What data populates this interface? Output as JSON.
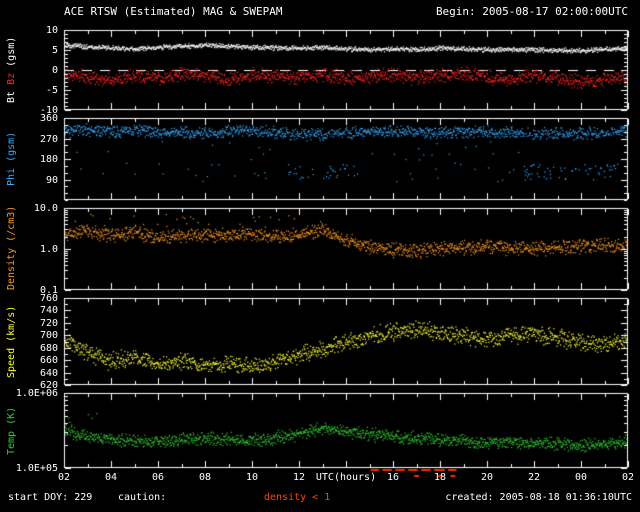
{
  "header": {
    "title": "ACE RTSW (Estimated) MAG & SWEPAM",
    "begin": "Begin: 2005-08-17 02:00:00UTC"
  },
  "footer": {
    "start_doy": "start DOY: 229",
    "caution_label": "caution:",
    "caution_item": "density < 1",
    "created": "created: 2005-08-18 01:36:10UTC"
  },
  "x_axis": {
    "title": "UTC(hours)",
    "title_hour": 14,
    "start_hour": 2,
    "end_hour": 26,
    "major_step": 2,
    "tick_labels": [
      {
        "h": 2,
        "label": "02"
      },
      {
        "h": 4,
        "label": "04"
      },
      {
        "h": 6,
        "label": "06"
      },
      {
        "h": 8,
        "label": "08"
      },
      {
        "h": 10,
        "label": "10"
      },
      {
        "h": 12,
        "label": "12"
      },
      {
        "h": 16,
        "label": "16"
      },
      {
        "h": 18,
        "label": "18"
      },
      {
        "h": 20,
        "label": "20"
      },
      {
        "h": 22,
        "label": "22"
      },
      {
        "h": 24,
        "label": "00"
      },
      {
        "h": 26,
        "label": "02"
      }
    ]
  },
  "caution_marks": {
    "color": "#ff2a00",
    "intervals": [
      [
        15.05,
        15.4
      ],
      [
        15.55,
        15.95
      ],
      [
        16.1,
        16.5
      ],
      [
        16.65,
        17.05
      ],
      [
        17.2,
        17.6
      ],
      [
        17.75,
        18.2
      ],
      [
        18.35,
        18.7
      ]
    ],
    "intervals_secondary": [
      [
        16.9,
        17.1
      ],
      [
        17.9,
        18.1
      ],
      [
        18.45,
        18.65
      ]
    ]
  },
  "chart_data": [
    {
      "name": "mag",
      "type": "scatter",
      "scale": "linear",
      "ylim": [
        -10,
        10
      ],
      "minor_step": 1,
      "zero_dash": true,
      "yticks": [
        {
          "v": 10,
          "label": "10"
        },
        {
          "v": 5,
          "label": "5"
        },
        {
          "v": 0,
          "label": "0"
        },
        {
          "v": -5,
          "label": "-5"
        },
        {
          "v": -10,
          "label": "-10"
        }
      ],
      "ylabel_parts": [
        {
          "text": "Bt",
          "color": "#ffffff"
        },
        {
          "text": "Bz",
          "color": "#ff2222"
        },
        {
          "text": "(gsm)",
          "color": "#ffffff"
        }
      ],
      "series": [
        {
          "name": "Bt",
          "color": "#ffffff",
          "noise": 0.7,
          "anchors": [
            [
              2,
              6.2
            ],
            [
              3,
              5.8
            ],
            [
              4,
              5.5
            ],
            [
              5,
              5.2
            ],
            [
              6,
              5.6
            ],
            [
              7,
              6.0
            ],
            [
              8,
              6.1
            ],
            [
              9,
              5.9
            ],
            [
              10,
              5.6
            ],
            [
              11,
              5.5
            ],
            [
              12,
              5.4
            ],
            [
              13,
              5.6
            ],
            [
              14,
              5.2
            ],
            [
              15,
              5.0
            ],
            [
              16,
              5.3
            ],
            [
              17,
              5.1
            ],
            [
              18,
              5.4
            ],
            [
              19,
              5.2
            ],
            [
              20,
              5.0
            ],
            [
              21,
              5.1
            ],
            [
              22,
              5.0
            ],
            [
              23,
              4.9
            ],
            [
              24,
              4.8
            ],
            [
              25,
              5.2
            ],
            [
              26,
              5.5
            ]
          ]
        },
        {
          "name": "Bz",
          "color": "#ff2222",
          "noise": 2.0,
          "anchors": [
            [
              2,
              -0.8
            ],
            [
              3,
              -1.8
            ],
            [
              4,
              -2.6
            ],
            [
              5,
              -1.4
            ],
            [
              6,
              -2.0
            ],
            [
              7,
              -1.0
            ],
            [
              8,
              -1.6
            ],
            [
              9,
              -2.4
            ],
            [
              10,
              -1.2
            ],
            [
              11,
              -1.6
            ],
            [
              12,
              -2.0
            ],
            [
              13,
              -1.2
            ],
            [
              14,
              -2.0
            ],
            [
              15,
              -1.6
            ],
            [
              16,
              -1.0
            ],
            [
              17,
              -2.0
            ],
            [
              18,
              -1.4
            ],
            [
              19,
              -1.0
            ],
            [
              20,
              -1.8
            ],
            [
              21,
              -2.4
            ],
            [
              22,
              -1.6
            ],
            [
              23,
              -2.0
            ],
            [
              24,
              -3.0
            ],
            [
              25,
              -2.4
            ],
            [
              26,
              -1.8
            ]
          ]
        }
      ]
    },
    {
      "name": "phi",
      "type": "scatter",
      "scale": "linear",
      "ylim": [
        0,
        360
      ],
      "minor_step": 30,
      "yticks": [
        {
          "v": 360,
          "label": "360"
        },
        {
          "v": 270,
          "label": "270"
        },
        {
          "v": 180,
          "label": "180"
        },
        {
          "v": 90,
          "label": "90"
        }
      ],
      "ylabel_parts": [
        {
          "text": "Phi",
          "color": "#33aaff"
        },
        {
          "text": "(gsm)",
          "color": "#33aaff"
        }
      ],
      "series": [
        {
          "name": "Phi",
          "color": "#33aaff",
          "noise": 30,
          "outliers": {
            "prob": 0.05,
            "range": [
              80,
              260
            ],
            "zones": [
              {
                "from": 11.5,
                "to": 14.5,
                "prob": 0.2,
                "range": [
                  85,
                  155
                ]
              },
              {
                "from": 21.5,
                "to": 25.5,
                "prob": 0.2,
                "range": [
                  85,
                  155
                ]
              }
            ]
          },
          "anchors": [
            [
              2,
              300
            ],
            [
              3,
              308
            ],
            [
              4,
              298
            ],
            [
              5,
              305
            ],
            [
              6,
              295
            ],
            [
              7,
              300
            ],
            [
              8,
              290
            ],
            [
              9,
              300
            ],
            [
              10,
              305
            ],
            [
              11,
              295
            ],
            [
              12,
              290
            ],
            [
              13,
              285
            ],
            [
              14,
              295
            ],
            [
              15,
              300
            ],
            [
              16,
              305
            ],
            [
              17,
              300
            ],
            [
              18,
              295
            ],
            [
              19,
              300
            ],
            [
              20,
              298
            ],
            [
              21,
              295
            ],
            [
              22,
              290
            ],
            [
              23,
              295
            ],
            [
              24,
              290
            ],
            [
              25,
              295
            ],
            [
              26,
              300
            ]
          ]
        }
      ]
    },
    {
      "name": "density",
      "type": "scatter",
      "scale": "log",
      "ylim": [
        0.1,
        10
      ],
      "yticks": [
        {
          "v": 10,
          "label": "10.0"
        },
        {
          "v": 1,
          "label": "1.0"
        },
        {
          "v": 0.1,
          "label": "0.1"
        }
      ],
      "ylabel_parts": [
        {
          "text": "Density",
          "color": "#ff9922"
        },
        {
          "text": "(/cm3)",
          "color": "#ff9922"
        }
      ],
      "series": [
        {
          "name": "Density",
          "color": "#ff9922",
          "lognoise": 0.2,
          "outliers": {
            "prob": 0,
            "range": [
              3,
              7
            ],
            "zones": [
              {
                "from": 2,
                "to": 13.5,
                "prob": 0.04,
                "range": [
                  3,
                  7
                ]
              }
            ]
          },
          "anchors": [
            [
              2,
              2.2
            ],
            [
              3,
              2.8
            ],
            [
              4,
              2.2
            ],
            [
              5,
              2.5
            ],
            [
              6,
              1.8
            ],
            [
              7,
              2.0
            ],
            [
              8,
              2.2
            ],
            [
              9,
              2.0
            ],
            [
              10,
              2.4
            ],
            [
              11,
              2.0
            ],
            [
              12,
              2.2
            ],
            [
              13,
              2.9
            ],
            [
              14,
              1.6
            ],
            [
              15,
              1.1
            ],
            [
              16,
              0.95
            ],
            [
              17,
              0.9
            ],
            [
              18,
              1.0
            ],
            [
              19,
              1.05
            ],
            [
              20,
              1.1
            ],
            [
              21,
              1.05
            ],
            [
              22,
              1.0
            ],
            [
              23,
              1.1
            ],
            [
              24,
              1.15
            ],
            [
              25,
              1.2
            ],
            [
              26,
              1.25
            ]
          ]
        }
      ]
    },
    {
      "name": "speed",
      "type": "scatter",
      "scale": "linear",
      "ylim": [
        620,
        760
      ],
      "minor_step": 10,
      "yticks": [
        {
          "v": 760,
          "label": "760"
        },
        {
          "v": 740,
          "label": "740"
        },
        {
          "v": 720,
          "label": "720"
        },
        {
          "v": 700,
          "label": "700"
        },
        {
          "v": 680,
          "label": "680"
        },
        {
          "v": 660,
          "label": "660"
        },
        {
          "v": 640,
          "label": "640"
        },
        {
          "v": 620,
          "label": "620"
        }
      ],
      "ylabel_parts": [
        {
          "text": "Speed",
          "color": "#ffff33"
        },
        {
          "text": "(km/s)",
          "color": "#ffff33"
        }
      ],
      "series": [
        {
          "name": "Speed",
          "color": "#ffff33",
          "noise": 16,
          "anchors": [
            [
              2,
              692
            ],
            [
              3,
              672
            ],
            [
              4,
              658
            ],
            [
              5,
              664
            ],
            [
              6,
              652
            ],
            [
              7,
              660
            ],
            [
              8,
              650
            ],
            [
              9,
              656
            ],
            [
              10,
              648
            ],
            [
              11,
              658
            ],
            [
              12,
              668
            ],
            [
              13,
              678
            ],
            [
              14,
              688
            ],
            [
              15,
              698
            ],
            [
              16,
              706
            ],
            [
              17,
              710
            ],
            [
              18,
              704
            ],
            [
              19,
              698
            ],
            [
              20,
              694
            ],
            [
              21,
              700
            ],
            [
              22,
              702
            ],
            [
              23,
              696
            ],
            [
              24,
              690
            ],
            [
              25,
              686
            ],
            [
              26,
              692
            ]
          ]
        }
      ]
    },
    {
      "name": "temp",
      "type": "scatter",
      "scale": "log",
      "ylim": [
        100000,
        1000000
      ],
      "yticks": [
        {
          "v": 1000000,
          "label": "1.0E+06"
        },
        {
          "v": 100000,
          "label": "1.0E+05"
        }
      ],
      "ylabel_parts": [
        {
          "text": "Temp",
          "color": "#33cc33"
        },
        {
          "text": "(K)",
          "color": "#33cc33"
        }
      ],
      "series": [
        {
          "name": "Temp",
          "color": "#33cc33",
          "lognoise": 0.1,
          "outliers": {
            "prob": 0,
            "range": [
              350000,
              550000
            ],
            "zones": [
              {
                "from": 2,
                "to": 4,
                "prob": 0.05,
                "range": [
                  350000,
                  550000
                ]
              }
            ]
          },
          "anchors": [
            [
              2,
              320000
            ],
            [
              3,
              260000
            ],
            [
              4,
              240000
            ],
            [
              5,
              230000
            ],
            [
              6,
              220000
            ],
            [
              7,
              240000
            ],
            [
              8,
              250000
            ],
            [
              9,
              240000
            ],
            [
              10,
              230000
            ],
            [
              11,
              250000
            ],
            [
              12,
              280000
            ],
            [
              13,
              340000
            ],
            [
              14,
              300000
            ],
            [
              15,
              280000
            ],
            [
              16,
              260000
            ],
            [
              17,
              250000
            ],
            [
              18,
              240000
            ],
            [
              19,
              230000
            ],
            [
              20,
              220000
            ],
            [
              21,
              220000
            ],
            [
              22,
              210000
            ],
            [
              23,
              210000
            ],
            [
              24,
              200000
            ],
            [
              25,
              210000
            ],
            [
              26,
              220000
            ]
          ]
        }
      ]
    }
  ]
}
